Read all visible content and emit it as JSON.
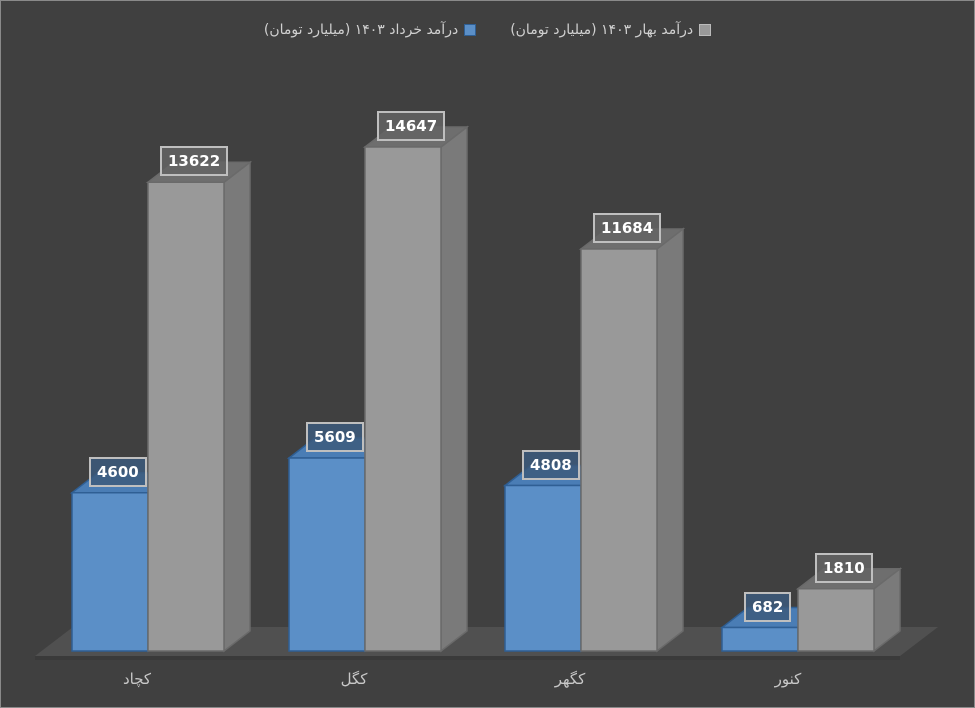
{
  "chart_data": {
    "type": "bar",
    "title": "",
    "xlabel": "",
    "ylabel": "",
    "categories": [
      "کچاد",
      "کگل",
      "کگهر",
      "کنور"
    ],
    "series": [
      {
        "name": "درآمد خرداد ۱۴۰۳ (میلیارد تومان)",
        "color": "#5b8fc7",
        "values": [
          4600,
          5609,
          4808,
          682
        ]
      },
      {
        "name": "درآمد بهار ۱۴۰۳ (میلیارد تومان)",
        "color": "#999999",
        "values": [
          13622,
          14647,
          11684,
          1810
        ]
      }
    ],
    "ylim": [
      0,
      16000
    ],
    "grid": false,
    "legend_position": "top",
    "style": "3d-clustered-column",
    "data_labels": true
  },
  "legend": {
    "items": [
      {
        "label": "درآمد بهار ۱۴۰۳ (میلیارد تومان)",
        "color": "#999999"
      },
      {
        "label": "درآمد خرداد ۱۴۰۳ (میلیارد تومان)",
        "color": "#5b8fc7"
      }
    ]
  },
  "colors": {
    "background": "#404040",
    "floor": "#505050",
    "blue_front": "#5b8fc7",
    "blue_side": "#3f6fa3",
    "blue_top": "#4a7db5",
    "gray_front": "#999999",
    "gray_side": "#7a7a7a",
    "gray_top": "#6e6e6e"
  }
}
